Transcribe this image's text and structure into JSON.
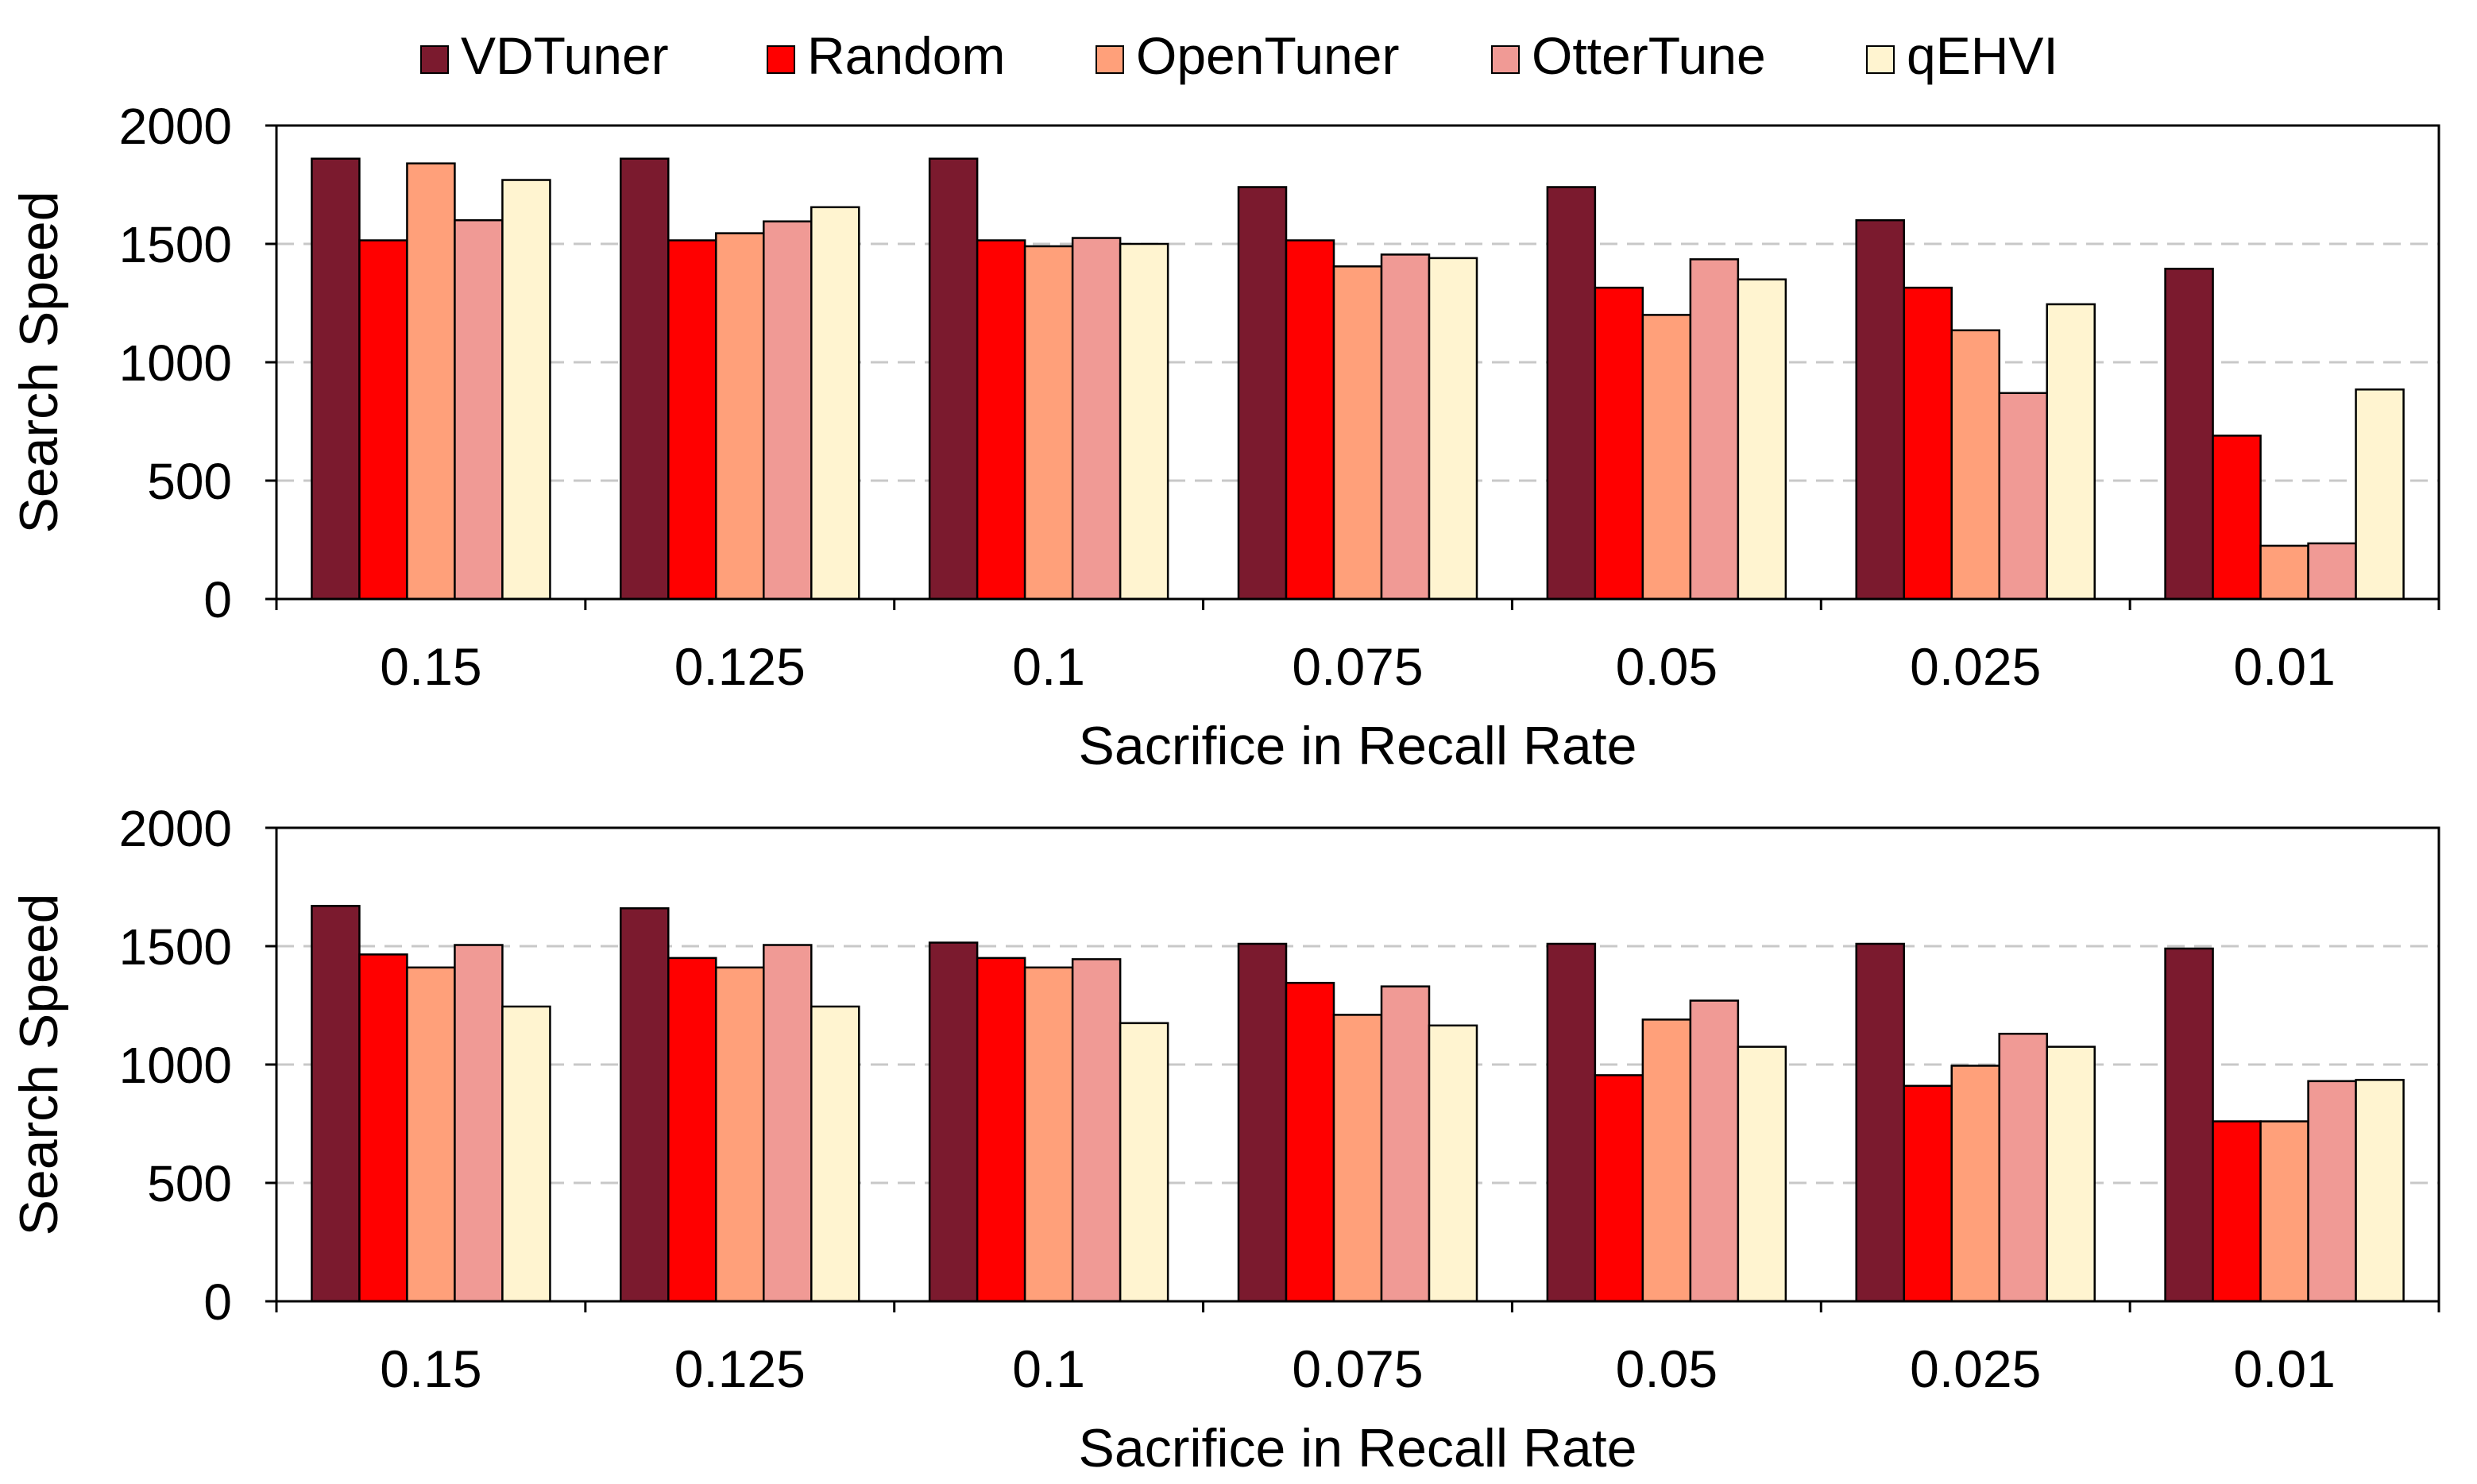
{
  "legend": [
    {
      "name": "VDTuner",
      "color": "#7B1A2E"
    },
    {
      "name": "Random",
      "color": "#FF0000"
    },
    {
      "name": "OpenTuner",
      "color": "#FFA07A"
    },
    {
      "name": "OtterTune",
      "color": "#F09A95"
    },
    {
      "name": "qEHVI",
      "color": "#FFF4D0"
    }
  ],
  "chart_data": [
    {
      "type": "bar",
      "title": "",
      "xlabel": "Sacrifice in Recall Rate",
      "ylabel": "Search Speed",
      "ylim": [
        0,
        2000
      ],
      "yticks": [
        0,
        500,
        1000,
        1500,
        2000
      ],
      "grid": "horizontal dashed",
      "legend_position": "top",
      "categories": [
        "0.15",
        "0.125",
        "0.1",
        "0.075",
        "0.05",
        "0.025",
        "0.01"
      ],
      "series": [
        {
          "name": "VDTuner",
          "color": "#7B1A2E",
          "values": [
            1860,
            1860,
            1860,
            1740,
            1740,
            1600,
            1395
          ]
        },
        {
          "name": "Random",
          "color": "#FF0000",
          "values": [
            1515,
            1515,
            1515,
            1515,
            1315,
            1315,
            690
          ]
        },
        {
          "name": "OpenTuner",
          "color": "#FFA07A",
          "values": [
            1840,
            1545,
            1490,
            1405,
            1200,
            1135,
            225
          ]
        },
        {
          "name": "OtterTune",
          "color": "#F09A95",
          "values": [
            1600,
            1595,
            1525,
            1455,
            1435,
            870,
            235
          ]
        },
        {
          "name": "qEHVI",
          "color": "#FFF4D0",
          "values": [
            1770,
            1655,
            1500,
            1440,
            1350,
            1245,
            885
          ]
        }
      ]
    },
    {
      "type": "bar",
      "title": "",
      "xlabel": "Sacrifice in Recall Rate",
      "ylabel": "Search Speed",
      "ylim": [
        0,
        2000
      ],
      "yticks": [
        0,
        500,
        1000,
        1500,
        2000
      ],
      "grid": "horizontal dashed",
      "legend_position": "top",
      "categories": [
        "0.15",
        "0.125",
        "0.1",
        "0.075",
        "0.05",
        "0.025",
        "0.01"
      ],
      "series": [
        {
          "name": "VDTuner",
          "color": "#7B1A2E",
          "values": [
            1670,
            1660,
            1515,
            1510,
            1510,
            1510,
            1490
          ]
        },
        {
          "name": "Random",
          "color": "#FF0000",
          "values": [
            1465,
            1450,
            1450,
            1345,
            955,
            910,
            760
          ]
        },
        {
          "name": "OpenTuner",
          "color": "#FFA07A",
          "values": [
            1410,
            1410,
            1410,
            1210,
            1190,
            995,
            760
          ]
        },
        {
          "name": "OtterTune",
          "color": "#F09A95",
          "values": [
            1505,
            1505,
            1445,
            1330,
            1270,
            1130,
            930
          ]
        },
        {
          "name": "qEHVI",
          "color": "#FFF4D0",
          "values": [
            1245,
            1245,
            1175,
            1165,
            1075,
            1075,
            935
          ]
        }
      ]
    }
  ]
}
